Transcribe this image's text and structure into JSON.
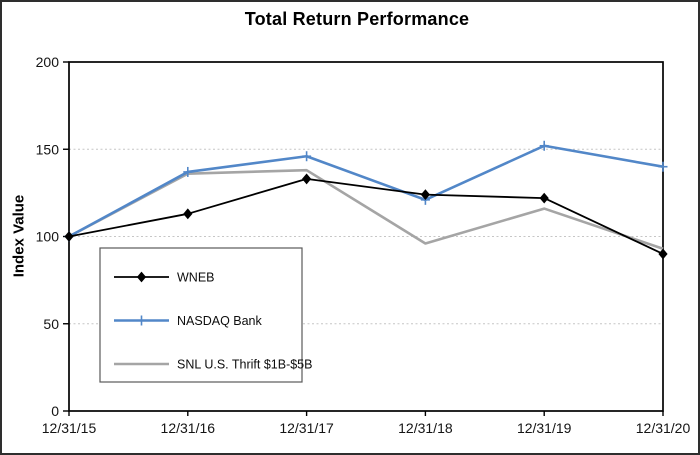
{
  "chart_data": {
    "type": "line",
    "title": "Total Return Performance",
    "xlabel": "",
    "ylabel": "Index Value",
    "categories": [
      "12/31/15",
      "12/31/16",
      "12/31/17",
      "12/31/18",
      "12/31/19",
      "12/31/20"
    ],
    "ylim": [
      0,
      200
    ],
    "yticks": [
      0,
      50,
      100,
      150,
      200
    ],
    "grid": "horizontal dotted lines at 50, 100, 150",
    "legend_position": "boxed legend inside plot, lower-left",
    "series": [
      {
        "name": "WNEB",
        "color": "#000000",
        "marker": "diamond",
        "values": [
          100,
          113,
          133,
          124,
          122,
          90
        ]
      },
      {
        "name": "NASDAQ Bank",
        "color": "#5287c8",
        "marker": "plus",
        "values": [
          100,
          137,
          146,
          121,
          152,
          140
        ]
      },
      {
        "name": "SNL U.S. Thrift $1B-$5B",
        "color": "#a5a5a5",
        "marker": "none",
        "values": [
          100,
          136,
          138,
          96,
          116,
          93
        ]
      }
    ]
  },
  "colors": {
    "background": "#ffffff",
    "outer_border": "#2e2e2e",
    "plot_border": "#000000",
    "gridline": "#c6c6c6",
    "legend_border": "#595959",
    "text": "#141414"
  }
}
